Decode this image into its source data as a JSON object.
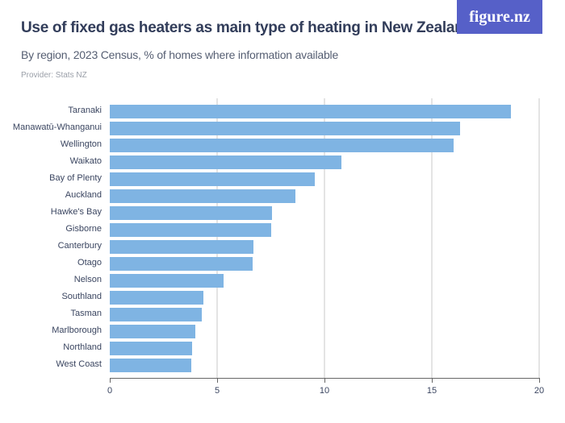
{
  "header": {
    "title": "Use of fixed gas heaters as main type of heating in New Zealand",
    "subtitle": "By region, 2023 Census, % of homes where information available",
    "provider": "Provider: Stats NZ",
    "logo": "figure.nz"
  },
  "colors": {
    "bar": "#7fb4e3",
    "logo_bg": "#5660c8",
    "title": "#323d5a"
  },
  "chart_data": {
    "type": "bar",
    "orientation": "horizontal",
    "title": "Use of fixed gas heaters as main type of heating in New Zealand",
    "subtitle": "By region, 2023 Census, % of homes where information available",
    "xlabel": "",
    "ylabel": "",
    "xlim": [
      0,
      20
    ],
    "x_ticks": [
      "0",
      "5",
      "10",
      "15",
      "20"
    ],
    "grid": true,
    "legend": "none",
    "categories": [
      "Taranaki",
      "Manawatū-Whanganui",
      "Wellington",
      "Waikato",
      "Bay of Plenty",
      "Auckland",
      "Hawke's Bay",
      "Gisborne",
      "Canterbury",
      "Otago",
      "Nelson",
      "Southland",
      "Tasman",
      "Marlborough",
      "Northland",
      "West Coast"
    ],
    "values": [
      18.7,
      16.3,
      16.0,
      10.8,
      9.55,
      8.65,
      7.55,
      7.5,
      6.7,
      6.65,
      5.3,
      4.35,
      4.3,
      4.0,
      3.85,
      3.8
    ]
  }
}
